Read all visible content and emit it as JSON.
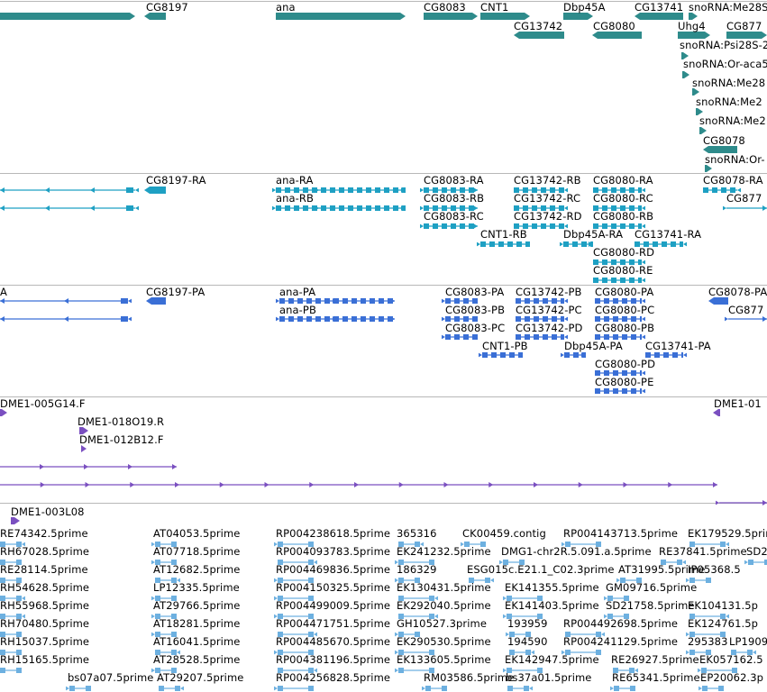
{
  "colors": {
    "gene": "#2e8b8b",
    "transcript": "#1ea0c3",
    "protein": "#3a6fd6",
    "clone": "#7a4fc0",
    "est": "#6db0e0",
    "separator": "#b8b8b8"
  },
  "tracks": [
    {
      "name": "gene-track",
      "label_size": 11.5,
      "features": [
        {
          "label": "CG8197",
          "kind": "gene"
        },
        {
          "label": "ana",
          "kind": "gene"
        },
        {
          "label": "CG8083",
          "kind": "gene"
        },
        {
          "label": "CNT1",
          "kind": "gene"
        },
        {
          "label": "Dbp45A",
          "kind": "gene"
        },
        {
          "label": "CG13741",
          "kind": "gene"
        },
        {
          "label": "snoRNA:Me28S",
          "kind": "gene"
        },
        {
          "label": "CG13742",
          "kind": "gene"
        },
        {
          "label": "CG8080",
          "kind": "gene"
        },
        {
          "label": "Uhg4",
          "kind": "gene"
        },
        {
          "label": "CG877",
          "kind": "gene"
        },
        {
          "label": "snoRNA:Psi28S-2",
          "kind": "gene"
        },
        {
          "label": "snoRNA:Or-aca5",
          "kind": "gene"
        },
        {
          "label": "snoRNA:Me28",
          "kind": "gene"
        },
        {
          "label": "snoRNA:Me2",
          "kind": "gene"
        },
        {
          "label": "snoRNA:Me2",
          "kind": "gene"
        },
        {
          "label": "CG8078",
          "kind": "gene"
        },
        {
          "label": "snoRNA:Or-",
          "kind": "gene"
        }
      ]
    },
    {
      "name": "transcript-track",
      "features": [
        {
          "label": "CG8197-RA"
        },
        {
          "label": "ana-RA"
        },
        {
          "label": "ana-RB"
        },
        {
          "label": "CG8083-RA"
        },
        {
          "label": "CG8083-RB"
        },
        {
          "label": "CG8083-RC"
        },
        {
          "label": "CG13742-RB"
        },
        {
          "label": "CG13742-RC"
        },
        {
          "label": "CG13742-RD"
        },
        {
          "label": "CG8080-RA"
        },
        {
          "label": "CG8080-RC"
        },
        {
          "label": "CG8080-RB"
        },
        {
          "label": "CG8080-RD"
        },
        {
          "label": "CG8080-RE"
        },
        {
          "label": "CNT1-RB"
        },
        {
          "label": "Dbp45A-RA"
        },
        {
          "label": "CG13741-RA"
        },
        {
          "label": "CG8078-RA"
        },
        {
          "label": "CG877"
        }
      ]
    },
    {
      "name": "protein-track",
      "features": [
        {
          "label": "A"
        },
        {
          "label": "CG8197-PA"
        },
        {
          "label": "ana-PA"
        },
        {
          "label": "ana-PB"
        },
        {
          "label": "CG8083-PA"
        },
        {
          "label": "CG8083-PB"
        },
        {
          "label": "CG8083-PC"
        },
        {
          "label": "CG13742-PB"
        },
        {
          "label": "CG13742-PC"
        },
        {
          "label": "CG13742-PD"
        },
        {
          "label": "CG8080-PA"
        },
        {
          "label": "CG8080-PC"
        },
        {
          "label": "CG8080-PB"
        },
        {
          "label": "CG8080-PD"
        },
        {
          "label": "CG8080-PE"
        },
        {
          "label": "CNT1-PB"
        },
        {
          "label": "Dbp45A-PA"
        },
        {
          "label": "CG13741-PA"
        },
        {
          "label": "CG8078-PA"
        },
        {
          "label": "CG877"
        }
      ]
    },
    {
      "name": "clone-track",
      "features": [
        {
          "label": "DME1-005G14.F"
        },
        {
          "label": "DME1-018O19.R"
        },
        {
          "label": "DME1-012B12.F"
        },
        {
          "label": "DME1-01"
        },
        {
          "label": "DME1-003L08"
        }
      ]
    },
    {
      "name": "est-track",
      "features": [
        {
          "label": "RE74342.5prime"
        },
        {
          "label": "AT04053.5prime"
        },
        {
          "label": "RP004238618.5prime"
        },
        {
          "label": "365316"
        },
        {
          "label": "CK00459.contig"
        },
        {
          "label": "RP004143713.5prime"
        },
        {
          "label": "EK179529.5prime"
        },
        {
          "label": "RH67028.5prime"
        },
        {
          "label": "AT07718.5prime"
        },
        {
          "label": "RP004093783.5prime"
        },
        {
          "label": "EK241232.5prime"
        },
        {
          "label": "DMG1-chr2R.5.091.a.5prime"
        },
        {
          "label": "RE37841.5prime"
        },
        {
          "label": "SD2"
        },
        {
          "label": "RE28114.5prime"
        },
        {
          "label": "AT12682.5prime"
        },
        {
          "label": "RP004469836.5prime"
        },
        {
          "label": "186329"
        },
        {
          "label": "ESG015c.E21.1_C02.3prime"
        },
        {
          "label": "AT31995.5prime"
        },
        {
          "label": "IP05368.5"
        },
        {
          "label": "RH54628.5prime"
        },
        {
          "label": "LP12335.5prime"
        },
        {
          "label": "RP004150325.5prime"
        },
        {
          "label": "EK130431.5prime"
        },
        {
          "label": "EK141355.5prime"
        },
        {
          "label": "GM09716.5prime"
        },
        {
          "label": "RH55968.5prime"
        },
        {
          "label": "AT29766.5prime"
        },
        {
          "label": "RP004499009.5prime"
        },
        {
          "label": "EK292040.5prime"
        },
        {
          "label": "EK141403.5prime"
        },
        {
          "label": "SD21758.5prime"
        },
        {
          "label": "EK104131.5p"
        },
        {
          "label": "RH70480.5prime"
        },
        {
          "label": "AT18281.5prime"
        },
        {
          "label": "RP004471751.5prime"
        },
        {
          "label": "GH10527.3prime"
        },
        {
          "label": "193959"
        },
        {
          "label": "RP004492698.5prime"
        },
        {
          "label": "EK124761.5p"
        },
        {
          "label": "RH15037.5prime"
        },
        {
          "label": "AT16041.5prime"
        },
        {
          "label": "RP004485670.5prime"
        },
        {
          "label": "EK290530.5prime"
        },
        {
          "label": "194590"
        },
        {
          "label": "RP004241129.5prime"
        },
        {
          "label": "295383"
        },
        {
          "label": "LP1909"
        },
        {
          "label": "RH15165.5prime"
        },
        {
          "label": "AT28528.5prime"
        },
        {
          "label": "RP004381196.5prime"
        },
        {
          "label": "EK133605.5prime"
        },
        {
          "label": "EK142947.5prime"
        },
        {
          "label": "RE26927.5prime"
        },
        {
          "label": "EK057162.5"
        },
        {
          "label": "bs07a07.5prime"
        },
        {
          "label": "AT29207.5prime"
        },
        {
          "label": "RP004256828.5prime"
        },
        {
          "label": "RM03586.5prime"
        },
        {
          "label": "bs37a01.5prime"
        },
        {
          "label": "RE65341.5prime"
        },
        {
          "label": "EP20062.3p"
        }
      ]
    }
  ]
}
